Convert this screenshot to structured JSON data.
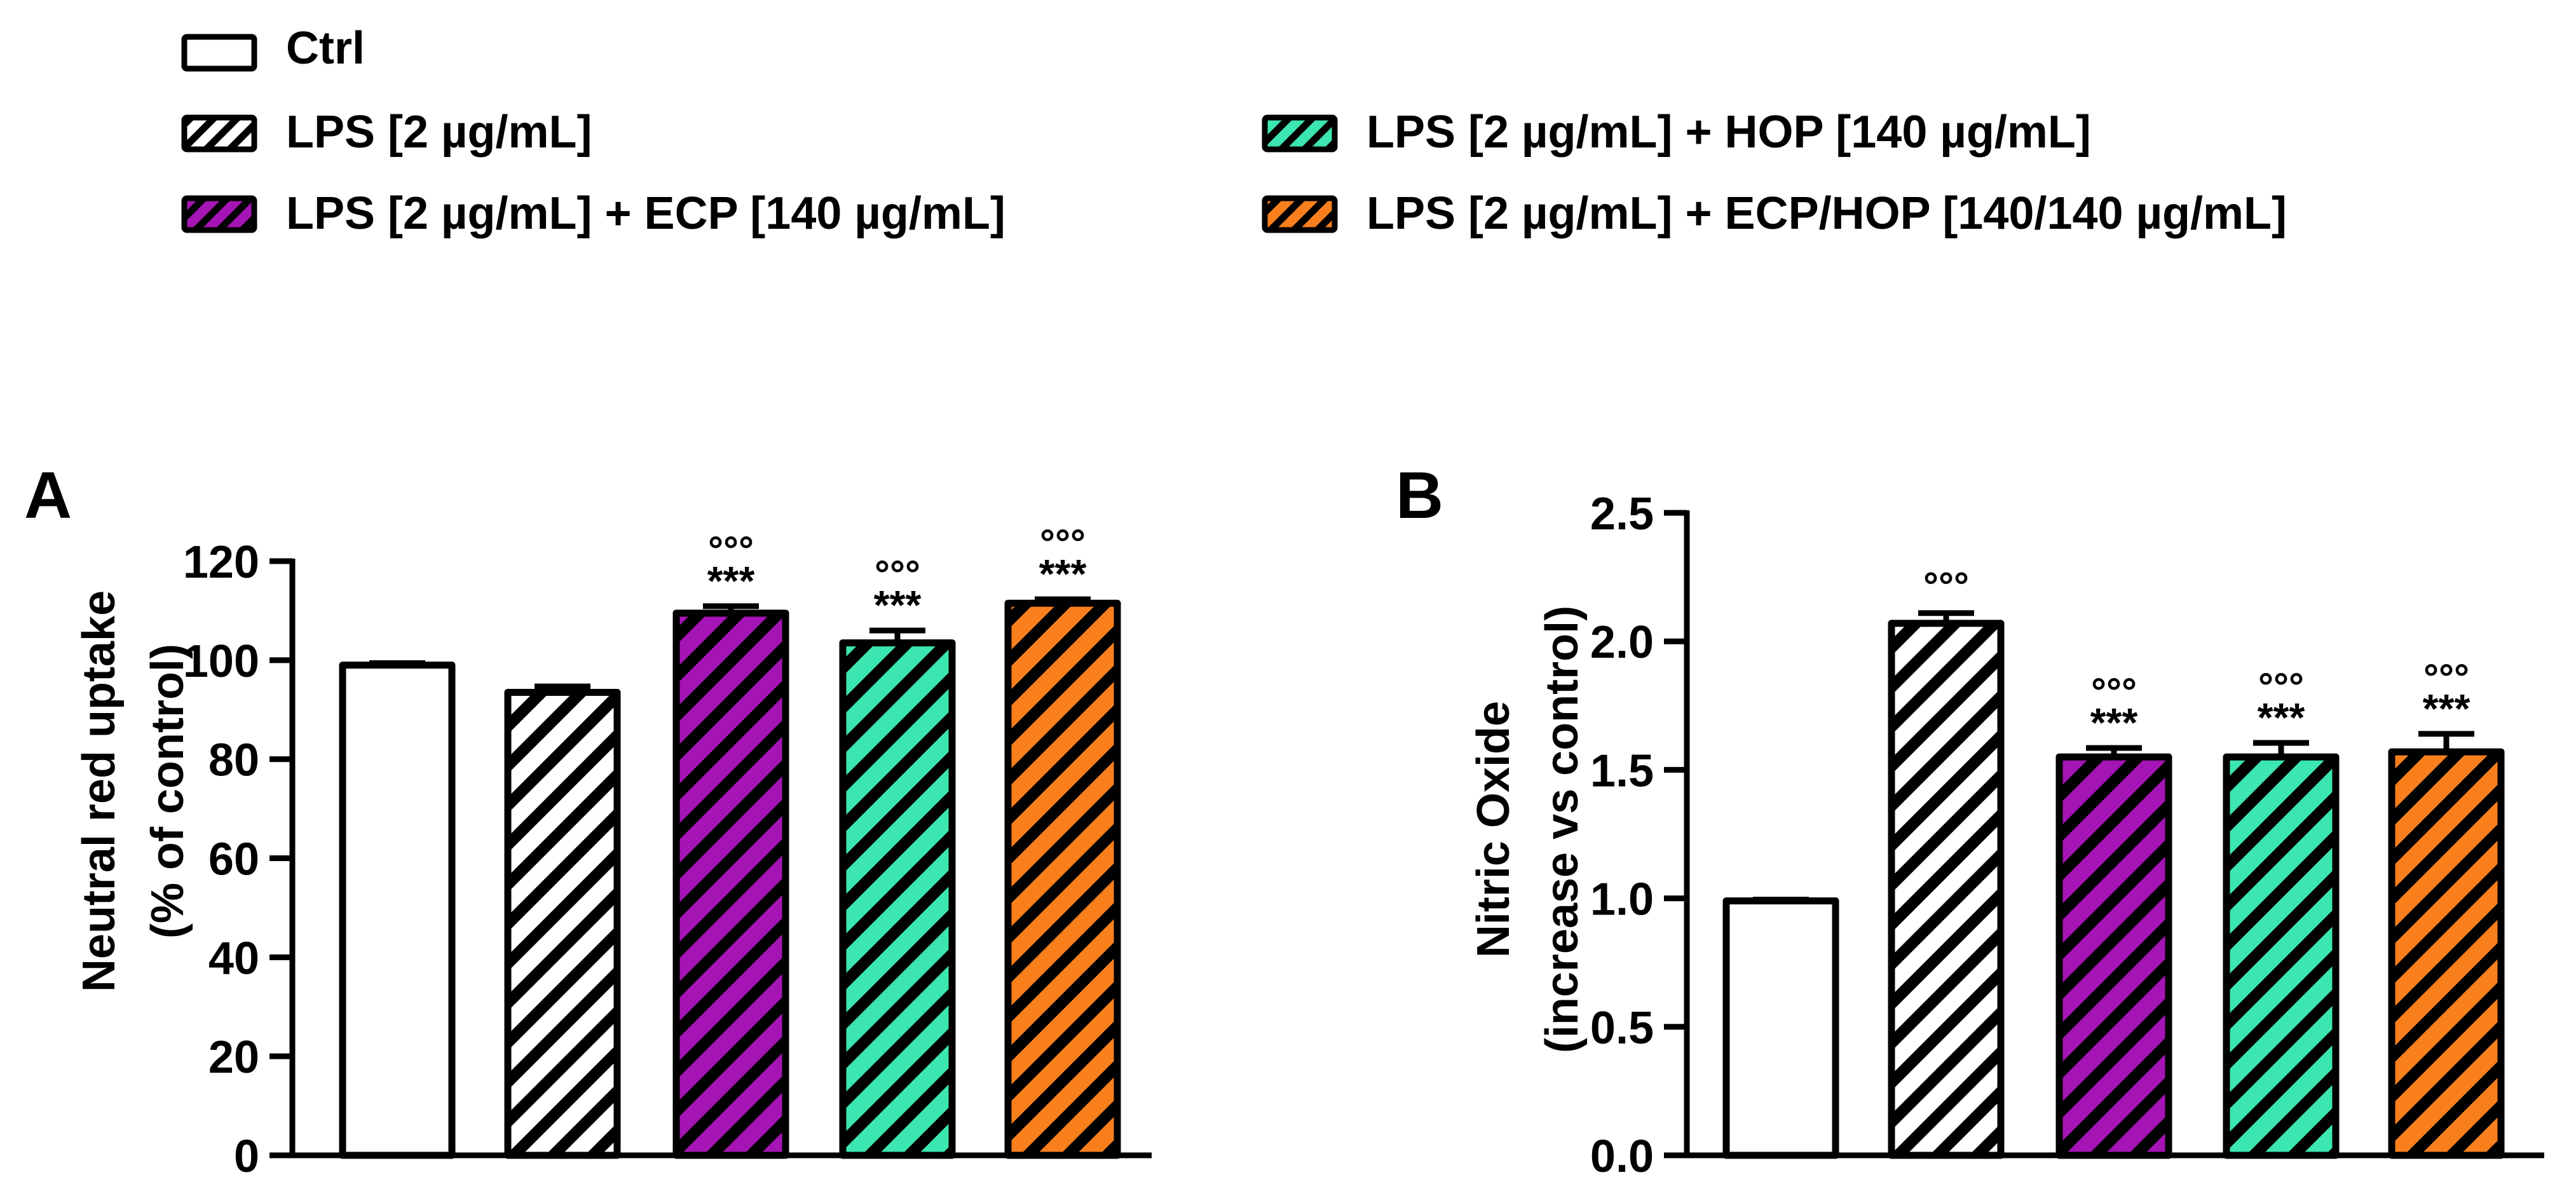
{
  "legend": {
    "placement": "top",
    "items": [
      {
        "label": "Ctrl",
        "color": "#ffffff",
        "pattern": "none"
      },
      {
        "label": "LPS [2 µg/mL]",
        "color": "#ffffff",
        "pattern": "hatch"
      },
      {
        "label": "LPS [2 µg/mL] + HOP [140 µg/mL]",
        "color": "#3ce6b0",
        "pattern": "hatch"
      },
      {
        "label": "LPS [2 µg/mL] + ECP [140 µg/mL]",
        "color": "#a514b4",
        "pattern": "hatch"
      },
      {
        "label": "LPS [2 µg/mL] + ECP/HOP [140/140 µg/mL]",
        "color": "#f87f1c",
        "pattern": "hatch"
      }
    ]
  },
  "chart_data": [
    {
      "type": "bar",
      "panel": "A",
      "ylabel": [
        "Neutral red uptake",
        "(% of control)"
      ],
      "ylim": [
        0,
        120
      ],
      "yticks": [
        0,
        20,
        40,
        60,
        80,
        100,
        120
      ],
      "ytick_labels": [
        "0",
        "20",
        "40",
        "60",
        "80",
        "100",
        "120"
      ],
      "categories": [
        "Ctrl",
        "LPS [2 µg/mL]",
        "LPS [2 µg/mL] + ECP [140 µg/mL]",
        "LPS [2 µg/mL] + HOP [140 µg/mL]",
        "LPS [2 µg/mL] + ECP/HOP [140/140 µg/mL]"
      ],
      "values": [
        99,
        93.5,
        109.5,
        103.5,
        111.5
      ],
      "errors": [
        0.4,
        1.2,
        1.4,
        2.5,
        0.8
      ],
      "colors": [
        "#ffffff",
        "#ffffff",
        "#a514b4",
        "#3ce6b0",
        "#f87f1c"
      ],
      "hatched": [
        false,
        true,
        true,
        true,
        true
      ],
      "sig_top": [
        "",
        "",
        "°°°",
        "°°°",
        "°°°"
      ],
      "sig_bottom": [
        "",
        "",
        "***",
        "***",
        "***"
      ]
    },
    {
      "type": "bar",
      "panel": "B",
      "ylabel": [
        "Nitric Oxide",
        "(increase vs control)"
      ],
      "ylim": [
        0,
        2.5
      ],
      "yticks": [
        0,
        0.5,
        1.0,
        1.5,
        2.0,
        2.5
      ],
      "ytick_labels": [
        "0.0",
        "0.5",
        "1.0",
        "1.5",
        "2.0",
        "2.5"
      ],
      "categories": [
        "Ctrl",
        "LPS [2 µg/mL]",
        "LPS [2 µg/mL] + ECP [140 µg/mL]",
        "LPS [2 µg/mL] + HOP [140 µg/mL]",
        "LPS [2 µg/mL] + ECP/HOP [140/140 µg/mL]"
      ],
      "values": [
        0.99,
        2.07,
        1.55,
        1.55,
        1.57
      ],
      "errors": [
        0.005,
        0.04,
        0.035,
        0.055,
        0.07
      ],
      "colors": [
        "#ffffff",
        "#ffffff",
        "#a514b4",
        "#3ce6b0",
        "#f87f1c"
      ],
      "hatched": [
        false,
        true,
        true,
        true,
        true
      ],
      "sig_top": [
        "",
        "°°°",
        "°°°",
        "°°°",
        "°°°"
      ],
      "sig_bottom": [
        "",
        "",
        "***",
        "***",
        "***"
      ]
    }
  ]
}
